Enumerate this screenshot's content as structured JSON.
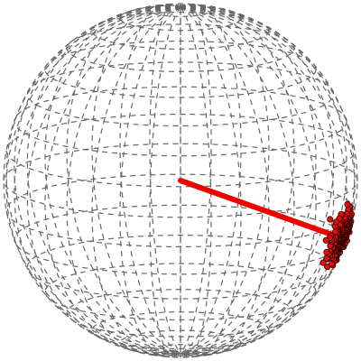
{
  "figure": {
    "kind": "3d-unit-sphere-wireframe",
    "view": {
      "azimuth_deg": 0,
      "elevation_deg": 12
    },
    "colors": {
      "background": "#ffffff",
      "wireframe": "#666666",
      "vector": "#ee0000",
      "point_fill": "#dd1111",
      "point_edge": "#330000"
    },
    "wireframe": {
      "style": "dashed",
      "latitude_bands": 18,
      "longitude_lines": 36
    },
    "mean_direction": {
      "x": 0.87,
      "y": -0.32,
      "z": -0.25,
      "length": 0.95
    },
    "point_cluster": {
      "count": 260,
      "center": {
        "x": 0.87,
        "y": -0.32,
        "z": -0.25
      },
      "concentration_kappa": 180
    }
  }
}
